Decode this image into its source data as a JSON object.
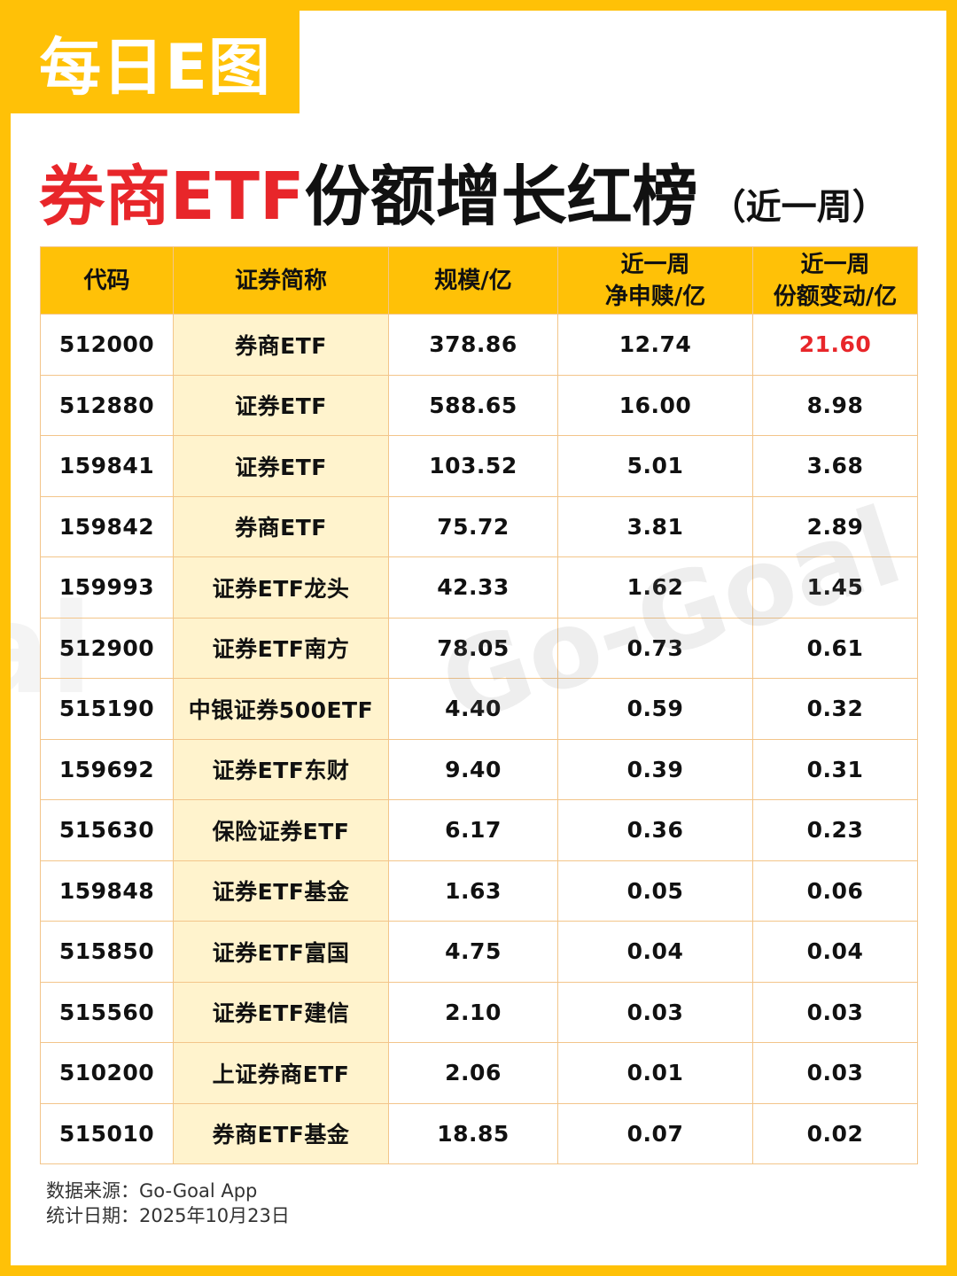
{
  "tag": "每日E图",
  "title": {
    "part1": "券商ETF",
    "part2": "份额增长红榜",
    "period": "（近一周）"
  },
  "watermark": "Go-Goal",
  "table": {
    "headers": [
      "代码",
      "证券简称",
      "规模/亿",
      "近一周\n净申赎/亿",
      "近一周\n份额变动/亿"
    ],
    "rows": [
      [
        "512000",
        "券商ETF",
        "378.86",
        "12.74",
        "21.60"
      ],
      [
        "512880",
        "证券ETF",
        "588.65",
        "16.00",
        "8.98"
      ],
      [
        "159841",
        "证券ETF",
        "103.52",
        "5.01",
        "3.68"
      ],
      [
        "159842",
        "券商ETF",
        "75.72",
        "3.81",
        "2.89"
      ],
      [
        "159993",
        "证券ETF龙头",
        "42.33",
        "1.62",
        "1.45"
      ],
      [
        "512900",
        "证券ETF南方",
        "78.05",
        "0.73",
        "0.61"
      ],
      [
        "515190",
        "中银证券500ETF",
        "4.40",
        "0.59",
        "0.32"
      ],
      [
        "159692",
        "证券ETF东财",
        "9.40",
        "0.39",
        "0.31"
      ],
      [
        "515630",
        "保险证券ETF",
        "6.17",
        "0.36",
        "0.23"
      ],
      [
        "159848",
        "证券ETF基金",
        "1.63",
        "0.05",
        "0.06"
      ],
      [
        "515850",
        "证券ETF富国",
        "4.75",
        "0.04",
        "0.04"
      ],
      [
        "515560",
        "证券ETF建信",
        "2.10",
        "0.03",
        "0.03"
      ],
      [
        "510200",
        "上证券商ETF",
        "2.06",
        "0.01",
        "0.03"
      ],
      [
        "515010",
        "券商ETF基金",
        "18.85",
        "0.07",
        "0.02"
      ]
    ],
    "highlight_color": "#E8262A"
  },
  "footer": {
    "source": "数据来源：Go-Goal App",
    "date": "统计日期：2025年10月23日"
  },
  "colors": {
    "background": "#FFC107",
    "header_bg": "#FFC107",
    "name_col_bg": "#FFF3CD",
    "title_red": "#E8262A"
  }
}
